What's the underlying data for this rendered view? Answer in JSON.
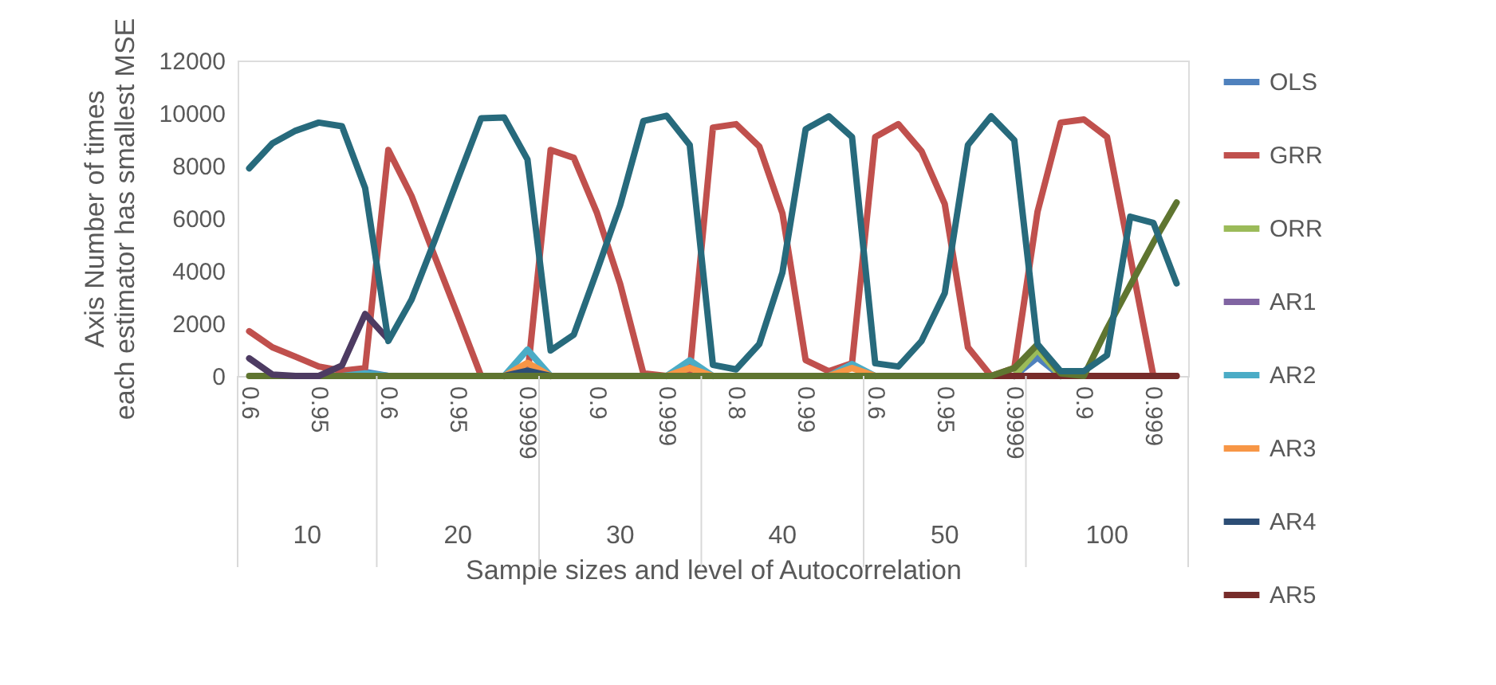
{
  "chart_data": {
    "type": "line",
    "xlabel": "Sample sizes and level of Autocorrelation",
    "ylabel": "Axis Number of times each estimator has smallest MSE",
    "categories": [
      "0.6",
      null,
      null,
      "0.95",
      null,
      null,
      "0.6",
      null,
      null,
      "0.95",
      null,
      null,
      "0.9999",
      null,
      null,
      "0.9",
      null,
      null,
      "0.999",
      null,
      null,
      "0.8",
      null,
      null,
      "0.99",
      null,
      null,
      "0.6",
      null,
      null,
      "0.95",
      null,
      null,
      "0.9999",
      null,
      null,
      "0.9",
      null,
      null,
      "0.999",
      null
    ],
    "annotations": [
      "10",
      "20",
      "30",
      "40",
      "50",
      "100"
    ],
    "ylim": [
      0,
      12000
    ],
    "yticks": [
      0,
      2000,
      4000,
      6000,
      8000,
      10000,
      12000
    ],
    "grid": false,
    "legend": "right",
    "marker": "none",
    "line_style": "solid",
    "series": [
      {
        "name": "OLS",
        "color": "#4f81bd",
        "values": [
          null,
          null,
          null,
          null,
          0,
          150,
          0,
          null,
          null,
          null,
          null,
          null,
          null,
          null,
          null,
          null,
          null,
          null,
          null,
          null,
          null,
          null,
          null,
          null,
          null,
          null,
          null,
          null,
          null,
          null,
          null,
          null,
          null,
          0,
          700,
          0,
          null,
          null,
          null,
          null,
          null
        ]
      },
      {
        "name": "GRR",
        "color": "#c0504d",
        "values": [
          1700,
          1090,
          730,
          360,
          200,
          300,
          8600,
          6850,
          4550,
          2300,
          0,
          0,
          0,
          8600,
          8300,
          6200,
          3500,
          100,
          0,
          150,
          9450,
          9580,
          8730,
          6180,
          600,
          180,
          480,
          9090,
          9580,
          8550,
          6540,
          1090,
          0,
          300,
          6240,
          9640,
          9760,
          9090,
          4540,
          0,
          0
        ]
      },
      {
        "name": "ORR",
        "color": "#9bbb59",
        "values": [
          null,
          null,
          null,
          null,
          null,
          null,
          null,
          null,
          null,
          null,
          null,
          0,
          200,
          0,
          null,
          null,
          null,
          null,
          null,
          null,
          null,
          null,
          null,
          null,
          null,
          null,
          null,
          null,
          null,
          null,
          null,
          null,
          null,
          0,
          1000,
          0,
          null,
          null,
          null,
          null,
          null
        ]
      },
      {
        "name": "AR1",
        "color": "#8064a2",
        "values": [
          null,
          null,
          null,
          null,
          null,
          null,
          null,
          null,
          null,
          null,
          null,
          null,
          null,
          null,
          null,
          null,
          null,
          null,
          null,
          null,
          null,
          null,
          null,
          null,
          null,
          null,
          null,
          null,
          null,
          null,
          null,
          null,
          null,
          null,
          null,
          null,
          null,
          null,
          null,
          null,
          null
        ]
      },
      {
        "name": "AR2",
        "color": "#4bacc6",
        "values": [
          null,
          null,
          null,
          null,
          0,
          100,
          0,
          null,
          null,
          null,
          null,
          0,
          1000,
          0,
          null,
          null,
          null,
          null,
          0,
          600,
          0,
          null,
          null,
          null,
          null,
          0,
          450,
          0,
          null,
          null,
          null,
          null,
          null,
          null,
          null,
          null,
          null,
          null,
          null,
          null,
          null
        ]
      },
      {
        "name": "AR3",
        "color": "#f79646",
        "values": [
          null,
          null,
          null,
          null,
          null,
          null,
          null,
          null,
          null,
          null,
          null,
          0,
          500,
          0,
          null,
          null,
          null,
          null,
          0,
          300,
          0,
          null,
          null,
          null,
          null,
          0,
          300,
          0,
          null,
          null,
          null,
          null,
          null,
          null,
          null,
          null,
          null,
          null,
          null,
          null,
          null
        ]
      },
      {
        "name": "AR4",
        "color": "#2c4d75",
        "values": [
          null,
          null,
          null,
          null,
          null,
          null,
          null,
          null,
          null,
          null,
          null,
          0,
          200,
          0,
          null,
          null,
          null,
          null,
          null,
          null,
          null,
          null,
          null,
          null,
          null,
          null,
          null,
          null,
          null,
          null,
          null,
          null,
          null,
          null,
          null,
          null,
          null,
          null,
          null,
          null,
          null
        ]
      },
      {
        "name": "AR5",
        "color": "#772c2a",
        "values": [
          null,
          null,
          null,
          null,
          null,
          null,
          null,
          null,
          null,
          null,
          null,
          null,
          null,
          null,
          null,
          null,
          null,
          null,
          null,
          null,
          null,
          null,
          null,
          null,
          null,
          null,
          null,
          null,
          null,
          null,
          null,
          0,
          0,
          0,
          0,
          0,
          0,
          0,
          0,
          0,
          0
        ]
      },
      {
        "color": "#5f7530",
        "values": [
          0,
          0,
          0,
          0,
          0,
          0,
          0,
          0,
          0,
          0,
          0,
          0,
          0,
          0,
          0,
          0,
          0,
          0,
          0,
          0,
          0,
          0,
          0,
          0,
          0,
          0,
          0,
          0,
          0,
          0,
          0,
          0,
          0,
          300,
          1200,
          100,
          0,
          1800,
          3450,
          5080,
          6600
        ]
      },
      {
        "color": "#4d3b62",
        "values": [
          670,
          50,
          0,
          0,
          400,
          2360,
          1390,
          null,
          null,
          null,
          null,
          null,
          null,
          null,
          null,
          null,
          null,
          null,
          null,
          null,
          null,
          null,
          null,
          null,
          null,
          null,
          null,
          null,
          null,
          null,
          null,
          null,
          null,
          null,
          null,
          null,
          null,
          null,
          null,
          null,
          null
        ]
      },
      {
        "color": "#276a7c",
        "values": [
          7900,
          8850,
          9330,
          9640,
          9500,
          7150,
          1330,
          2900,
          5150,
          7500,
          9800,
          9830,
          8240,
          970,
          1570,
          4000,
          6500,
          9700,
          9900,
          8790,
          420,
          250,
          1210,
          3940,
          9390,
          9880,
          9090,
          480,
          360,
          1330,
          3150,
          8790,
          9880,
          8970,
          1210,
          180,
          180,
          790,
          6060,
          5820,
          3520
        ]
      }
    ]
  }
}
